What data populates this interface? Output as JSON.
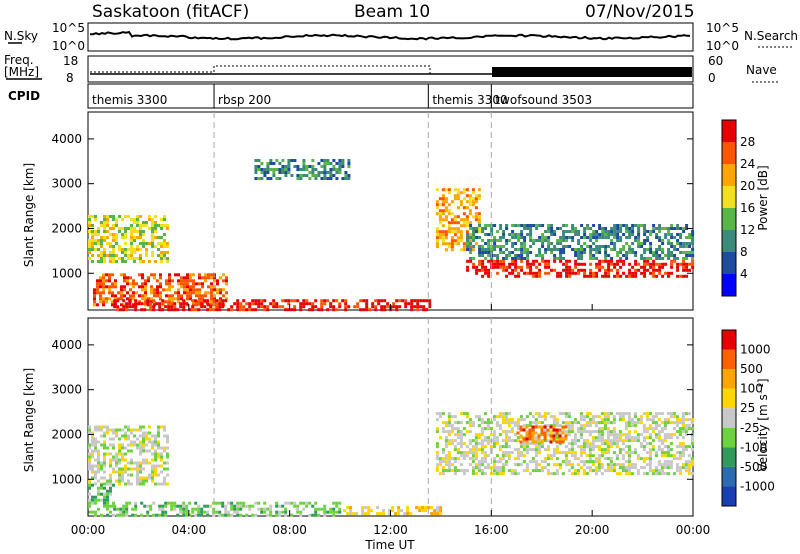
{
  "header": {
    "station": "Saskatoon (fitACF)",
    "beam": "Beam 10",
    "date": "07/Nov/2015"
  },
  "panels": {
    "nsky": {
      "label": "N.Sky",
      "ticks": [
        "10^5",
        "10^0"
      ],
      "right_label": "N.Search",
      "right_ticks": [
        "10^5",
        "10^0"
      ]
    },
    "freq": {
      "label_line1": "Freq.",
      "label_line2": "[MHz]",
      "ticks": [
        "18",
        "8"
      ],
      "right_label": "Nave",
      "right_ticks": [
        "60",
        "0"
      ]
    },
    "cpid": {
      "label": "CPID",
      "modes": [
        {
          "name": "themis 3300",
          "start_hour": 0
        },
        {
          "name": "rbsp 200",
          "start_hour": 5
        },
        {
          "name": "themis 3300",
          "start_hour": 13.5
        },
        {
          "name": "twofsound 3503",
          "start_hour": 16
        }
      ]
    }
  },
  "colorbars": {
    "power": {
      "label": "Power [dB]",
      "ticks": [
        "28",
        "24",
        "20",
        "16",
        "12",
        "8",
        "4"
      ]
    },
    "velocity": {
      "label": "Velocity  [m s⁻¹]",
      "ticks": [
        "1000",
        "500",
        "100",
        "25",
        "-25",
        "-100",
        "-500",
        "-1000"
      ]
    }
  },
  "chart_data": {
    "type": "heatmap",
    "xlabel": "Time UT",
    "x_ticks": [
      "00:00",
      "04:00",
      "08:00",
      "12:00",
      "16:00",
      "20:00",
      "00:00"
    ],
    "x_range_hours": [
      0,
      24
    ],
    "ylabel": "Slant Range [km]",
    "y_ticks": [
      "1000",
      "2000",
      "3000",
      "4000"
    ],
    "ylim": [
      180,
      4600
    ],
    "mode_boundaries_hours": [
      5,
      13.5,
      16
    ],
    "colors": {
      "power": [
        "#0000ff",
        "#1e4ba0",
        "#3b8b78",
        "#58b548",
        "#f0e020",
        "#ffa500",
        "#ff5500",
        "#e60000"
      ],
      "velocity": [
        "#1b3fb0",
        "#2c6ab2",
        "#2f9a5a",
        "#6ed23c",
        "#c8c8c8",
        "#ffd700",
        "#ffa500",
        "#ff6000",
        "#e60000"
      ]
    },
    "power_bands": [
      {
        "t0": 0.0,
        "t1": 3.2,
        "r0": 1250,
        "r1": 2300,
        "lvl": 4
      },
      {
        "t0": 0.2,
        "t1": 5.5,
        "r0": 300,
        "r1": 1000,
        "lvl": 6
      },
      {
        "t0": 1.0,
        "t1": 13.5,
        "r0": 200,
        "r1": 420,
        "lvl": 7
      },
      {
        "t0": 13.8,
        "t1": 15.5,
        "r0": 1500,
        "r1": 2900,
        "lvl": 5
      },
      {
        "t0": 15.0,
        "t1": 24.0,
        "r0": 900,
        "r1": 1300,
        "lvl": 7
      },
      {
        "t0": 15.0,
        "t1": 24.0,
        "r0": 1300,
        "r1": 2100,
        "lvl": 2
      },
      {
        "t0": 6.6,
        "t1": 10.3,
        "r0": 3100,
        "r1": 3550,
        "lvl": 2
      }
    ],
    "velocity_bands": [
      {
        "t0": 0.0,
        "t1": 3.2,
        "r0": 900,
        "r1": 2200,
        "lvl": 4
      },
      {
        "t0": 0.0,
        "t1": 1.0,
        "r0": 200,
        "r1": 900,
        "lvl": 3
      },
      {
        "t0": 1.0,
        "t1": 10.0,
        "r0": 200,
        "r1": 500,
        "lvl": 3
      },
      {
        "t0": 10.0,
        "t1": 14.0,
        "r0": 200,
        "r1": 400,
        "lvl": 5
      },
      {
        "t0": 13.8,
        "t1": 24.0,
        "r0": 1100,
        "r1": 2500,
        "lvl": 4
      },
      {
        "t0": 17.0,
        "t1": 19.0,
        "r0": 1800,
        "r1": 2200,
        "lvl": 7
      }
    ]
  }
}
